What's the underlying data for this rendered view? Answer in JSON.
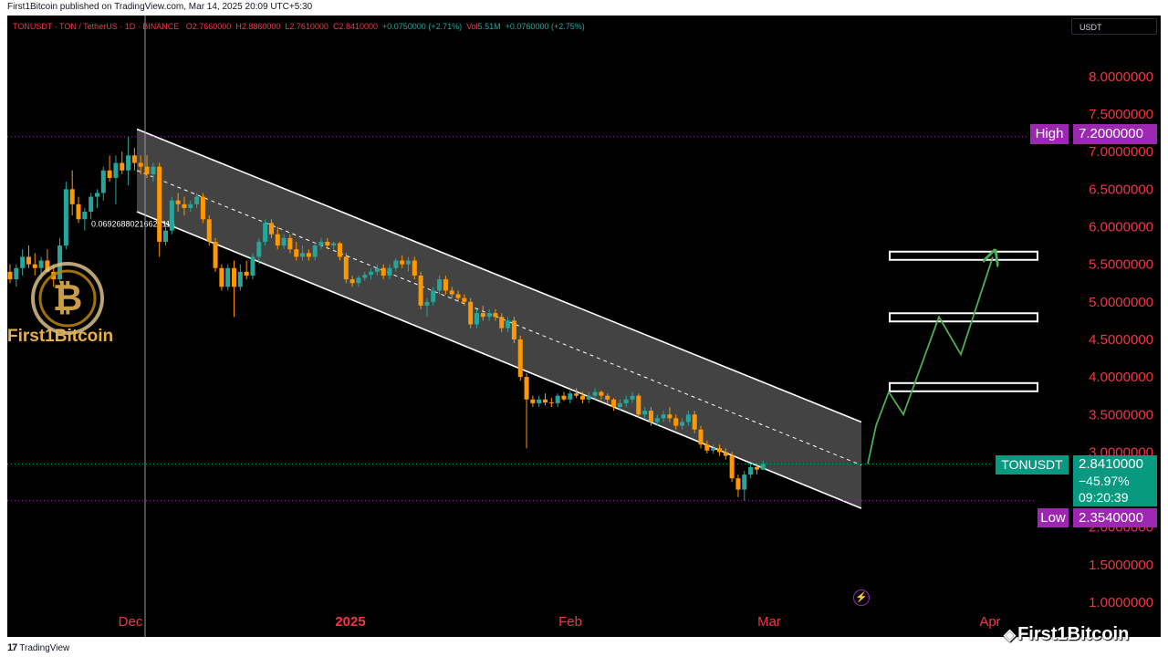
{
  "header": {
    "publisher_line": "First1Bitcoin published on TradingView.com, Mar 14, 2025 20:09 UTC+5:30"
  },
  "legend": {
    "symbol": "TONUSDT · TON / TetherUS · 1D · BINANCE",
    "open_label": "O",
    "open": "2.7660000",
    "high_label": "H",
    "high": "2.8860000",
    "low_label": "L",
    "low": "2.7610000",
    "close_label": "C",
    "close": "2.8410000",
    "change": "+0.0750000 (+2.71%)",
    "volume_label": "Vol",
    "volume": "5.51M",
    "volume_change": "+0.0760000 (+2.75%)"
  },
  "currency": "USDT",
  "price_axis": {
    "ticks": [
      "8.0000000",
      "7.5000000",
      "7.0000000",
      "6.5000000",
      "6.0000000",
      "5.5000000",
      "5.0000000",
      "4.5000000",
      "4.0000000",
      "3.5000000",
      "3.0000000",
      "2.5000000",
      "2.0000000",
      "1.5000000",
      "1.0000000"
    ]
  },
  "time_axis": {
    "ticks": [
      "Dec",
      "2025",
      "Feb",
      "Mar",
      "Apr"
    ]
  },
  "markers": {
    "high_label": "High",
    "high_value": "7.2000000",
    "low_label": "Low",
    "low_value": "2.3540000",
    "last_symbol": "TONUSDT",
    "last_value": "2.8410000",
    "last_change": "−45.97%",
    "countdown": "09:20:39"
  },
  "channel_note": "0.06926880216625114",
  "watermark": {
    "brand": "First1Bitcoin",
    "corner": "First1Bitcoin"
  },
  "footer": {
    "brand": "TradingView"
  },
  "colors": {
    "up": "#26a69a",
    "down": "#ff9800",
    "high_low_badge": "#9c27b0",
    "last_badge": "#089981",
    "axis_text": "#f23645",
    "channel_fill": "#5a5a5a",
    "projection": "#4caf50"
  },
  "chart_data": {
    "type": "candlestick",
    "symbol": "TONUSDT",
    "timeframe": "1D",
    "ylim": [
      0.95,
      8.8
    ],
    "high": 7.2,
    "low": 2.354,
    "last": 2.841,
    "candles": [
      [
        5.4,
        5.5,
        5.25,
        5.3
      ],
      [
        5.3,
        5.5,
        5.2,
        5.45
      ],
      [
        5.45,
        5.7,
        5.35,
        5.6
      ],
      [
        5.6,
        5.75,
        5.45,
        5.5
      ],
      [
        5.5,
        5.65,
        5.35,
        5.45
      ],
      [
        5.45,
        5.6,
        5.3,
        5.55
      ],
      [
        5.55,
        5.7,
        5.4,
        5.4
      ],
      [
        5.4,
        5.5,
        5.2,
        5.3
      ],
      [
        5.3,
        5.85,
        5.25,
        5.75
      ],
      [
        5.75,
        6.6,
        5.7,
        6.5
      ],
      [
        6.5,
        6.75,
        6.15,
        6.3
      ],
      [
        6.3,
        6.4,
        6.05,
        6.1
      ],
      [
        6.1,
        6.25,
        5.95,
        6.2
      ],
      [
        6.2,
        6.45,
        6.1,
        6.4
      ],
      [
        6.4,
        6.5,
        6.25,
        6.45
      ],
      [
        6.45,
        6.8,
        6.35,
        6.75
      ],
      [
        6.75,
        6.95,
        6.6,
        6.65
      ],
      [
        6.65,
        6.95,
        6.3,
        6.85
      ],
      [
        6.85,
        7.0,
        6.7,
        6.75
      ],
      [
        6.75,
        7.2,
        6.55,
        6.95
      ],
      [
        6.95,
        7.05,
        6.75,
        6.85
      ],
      [
        6.85,
        6.95,
        6.7,
        6.8
      ],
      [
        6.8,
        6.95,
        6.65,
        6.7
      ],
      [
        6.7,
        6.85,
        6.6,
        6.8
      ],
      [
        6.8,
        6.85,
        5.6,
        5.8
      ],
      [
        5.8,
        6.05,
        5.75,
        5.95
      ],
      [
        5.95,
        6.4,
        5.9,
        6.35
      ],
      [
        6.35,
        6.45,
        6.2,
        6.3
      ],
      [
        6.3,
        6.4,
        6.15,
        6.25
      ],
      [
        6.25,
        6.35,
        6.2,
        6.3
      ],
      [
        6.3,
        6.45,
        6.25,
        6.4
      ],
      [
        6.4,
        6.45,
        6.05,
        6.1
      ],
      [
        6.1,
        6.15,
        5.75,
        5.8
      ],
      [
        5.8,
        5.85,
        5.4,
        5.45
      ],
      [
        5.45,
        5.5,
        5.15,
        5.2
      ],
      [
        5.2,
        5.5,
        5.15,
        5.45
      ],
      [
        5.45,
        5.55,
        4.8,
        5.2
      ],
      [
        5.2,
        5.5,
        5.15,
        5.4
      ],
      [
        5.4,
        5.55,
        5.3,
        5.35
      ],
      [
        5.35,
        5.65,
        5.3,
        5.6
      ],
      [
        5.6,
        5.85,
        5.5,
        5.8
      ],
      [
        5.8,
        6.1,
        5.75,
        6.05
      ],
      [
        6.05,
        6.1,
        5.85,
        5.9
      ],
      [
        5.9,
        6.0,
        5.7,
        5.75
      ],
      [
        5.75,
        5.9,
        5.7,
        5.85
      ],
      [
        5.85,
        5.9,
        5.65,
        5.7
      ],
      [
        5.7,
        5.8,
        5.55,
        5.6
      ],
      [
        5.6,
        5.75,
        5.55,
        5.65
      ],
      [
        5.65,
        5.7,
        5.55,
        5.6
      ],
      [
        5.6,
        5.8,
        5.55,
        5.75
      ],
      [
        5.75,
        5.85,
        5.7,
        5.8
      ],
      [
        5.8,
        5.85,
        5.7,
        5.75
      ],
      [
        5.75,
        5.8,
        5.7,
        5.78
      ],
      [
        5.78,
        5.8,
        5.55,
        5.6
      ],
      [
        5.6,
        5.65,
        5.25,
        5.3
      ],
      [
        5.3,
        5.35,
        5.2,
        5.25
      ],
      [
        5.25,
        5.35,
        5.2,
        5.32
      ],
      [
        5.32,
        5.4,
        5.28,
        5.36
      ],
      [
        5.36,
        5.45,
        5.3,
        5.4
      ],
      [
        5.4,
        5.5,
        5.35,
        5.45
      ],
      [
        5.45,
        5.5,
        5.3,
        5.35
      ],
      [
        5.35,
        5.5,
        5.3,
        5.45
      ],
      [
        5.45,
        5.58,
        5.4,
        5.55
      ],
      [
        5.55,
        5.62,
        5.45,
        5.5
      ],
      [
        5.5,
        5.6,
        5.4,
        5.55
      ],
      [
        5.55,
        5.6,
        5.3,
        5.35
      ],
      [
        5.35,
        5.4,
        4.9,
        4.95
      ],
      [
        4.95,
        5.05,
        4.8,
        5.0
      ],
      [
        5.0,
        5.2,
        4.95,
        5.15
      ],
      [
        5.15,
        5.35,
        5.1,
        5.3
      ],
      [
        5.3,
        5.35,
        5.1,
        5.15
      ],
      [
        5.15,
        5.2,
        5.05,
        5.1
      ],
      [
        5.1,
        5.15,
        5.0,
        5.05
      ],
      [
        5.05,
        5.1,
        4.95,
        5.0
      ],
      [
        5.0,
        5.05,
        4.65,
        4.7
      ],
      [
        4.7,
        4.9,
        4.65,
        4.85
      ],
      [
        4.85,
        4.95,
        4.75,
        4.8
      ],
      [
        4.8,
        4.9,
        4.75,
        4.85
      ],
      [
        4.85,
        4.9,
        4.75,
        4.8
      ],
      [
        4.8,
        4.85,
        4.6,
        4.65
      ],
      [
        4.65,
        4.8,
        4.6,
        4.75
      ],
      [
        4.75,
        4.8,
        4.45,
        4.5
      ],
      [
        4.5,
        4.55,
        3.95,
        4.0
      ],
      [
        4.0,
        4.05,
        3.05,
        3.7
      ],
      [
        3.7,
        3.75,
        3.6,
        3.65
      ],
      [
        3.65,
        3.75,
        3.6,
        3.7
      ],
      [
        3.7,
        3.78,
        3.62,
        3.66
      ],
      [
        3.66,
        3.72,
        3.6,
        3.65
      ],
      [
        3.65,
        3.78,
        3.6,
        3.75
      ],
      [
        3.75,
        3.8,
        3.68,
        3.7
      ],
      [
        3.7,
        3.82,
        3.65,
        3.78
      ],
      [
        3.78,
        3.85,
        3.72,
        3.75
      ],
      [
        3.75,
        3.8,
        3.65,
        3.7
      ],
      [
        3.7,
        3.8,
        3.65,
        3.75
      ],
      [
        3.75,
        3.85,
        3.7,
        3.8
      ],
      [
        3.8,
        3.82,
        3.7,
        3.75
      ],
      [
        3.75,
        3.78,
        3.65,
        3.7
      ],
      [
        3.7,
        3.72,
        3.55,
        3.6
      ],
      [
        3.6,
        3.7,
        3.55,
        3.65
      ],
      [
        3.65,
        3.75,
        3.6,
        3.7
      ],
      [
        3.7,
        3.8,
        3.65,
        3.75
      ],
      [
        3.75,
        3.78,
        3.45,
        3.5
      ],
      [
        3.5,
        3.6,
        3.45,
        3.55
      ],
      [
        3.55,
        3.6,
        3.35,
        3.4
      ],
      [
        3.4,
        3.5,
        3.35,
        3.45
      ],
      [
        3.45,
        3.55,
        3.4,
        3.5
      ],
      [
        3.5,
        3.6,
        3.4,
        3.45
      ],
      [
        3.45,
        3.5,
        3.3,
        3.35
      ],
      [
        3.35,
        3.45,
        3.3,
        3.4
      ],
      [
        3.4,
        3.55,
        3.35,
        3.5
      ],
      [
        3.5,
        3.55,
        3.25,
        3.3
      ],
      [
        3.3,
        3.35,
        3.05,
        3.1
      ],
      [
        3.1,
        3.15,
        2.98,
        3.02
      ],
      [
        3.02,
        3.1,
        2.98,
        3.05
      ],
      [
        3.05,
        3.1,
        2.95,
        3.0
      ],
      [
        3.0,
        3.05,
        2.9,
        2.95
      ],
      [
        2.95,
        3.0,
        2.6,
        2.65
      ],
      [
        2.65,
        2.7,
        2.4,
        2.5
      ],
      [
        2.5,
        2.75,
        2.354,
        2.7
      ],
      [
        2.7,
        2.85,
        2.65,
        2.8
      ],
      [
        2.8,
        2.85,
        2.7,
        2.766
      ],
      [
        2.766,
        2.886,
        2.761,
        2.841
      ]
    ],
    "channel": {
      "upper": [
        7.3,
        3.4
      ],
      "lower": [
        6.2,
        2.25
      ]
    },
    "projection": [
      2.841,
      3.35,
      3.8,
      3.5,
      4.8,
      4.3,
      5.6
    ],
    "target_zones": [
      3.87,
      4.8,
      5.62
    ]
  }
}
